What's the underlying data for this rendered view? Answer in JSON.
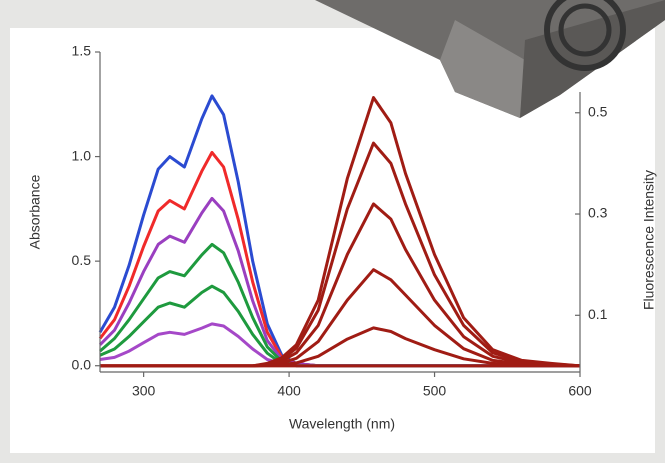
{
  "chart_data": {
    "type": "line",
    "xlabel": "Wavelength (nm)",
    "ylabel": "Absorbance",
    "y2label": "Fluorescence Intensity",
    "x": [
      270,
      280,
      290,
      300,
      310,
      318,
      328,
      340,
      347,
      355,
      365,
      375,
      385,
      395,
      405,
      420,
      440,
      458,
      470,
      480,
      500,
      520,
      540,
      560,
      580,
      600
    ],
    "xlim": [
      270,
      600
    ],
    "xticks": [
      300,
      400,
      500,
      600
    ],
    "ylim": [
      -0.03,
      1.5
    ],
    "yticks": [
      {
        "value": 0,
        "label": "0.0"
      },
      0.5,
      {
        "value": 1,
        "label": "1.0"
      },
      1.5
    ],
    "y2lim": [
      -0.012,
      0.62
    ],
    "y2ticks": [
      0.1,
      0.3,
      0.5
    ],
    "series": [
      {
        "color": "#2b4bd1",
        "values": [
          0.16,
          0.28,
          0.48,
          0.72,
          0.94,
          1.0,
          0.95,
          1.18,
          1.29,
          1.2,
          0.88,
          0.5,
          0.2,
          0.05,
          0.01,
          0,
          0,
          0,
          0,
          0,
          0,
          0,
          0,
          0,
          0,
          0
        ]
      },
      {
        "color": "#f02a2a",
        "values": [
          0.13,
          0.22,
          0.38,
          0.57,
          0.74,
          0.79,
          0.75,
          0.93,
          1.02,
          0.95,
          0.7,
          0.4,
          0.16,
          0.04,
          0.01,
          0,
          0,
          0,
          0,
          0,
          0,
          0,
          0,
          0,
          0,
          0
        ]
      },
      {
        "color": "#9a3fc0",
        "values": [
          0.1,
          0.17,
          0.3,
          0.45,
          0.58,
          0.62,
          0.59,
          0.73,
          0.8,
          0.74,
          0.55,
          0.31,
          0.12,
          0.03,
          0.01,
          0,
          0,
          0,
          0,
          0,
          0,
          0,
          0,
          0,
          0,
          0
        ]
      },
      {
        "color": "#1e9a3e",
        "values": [
          0.07,
          0.13,
          0.22,
          0.32,
          0.42,
          0.45,
          0.43,
          0.53,
          0.58,
          0.54,
          0.4,
          0.23,
          0.09,
          0.02,
          0,
          0,
          0,
          0,
          0,
          0,
          0,
          0,
          0,
          0,
          0,
          0
        ]
      },
      {
        "color": "#1e9a3e",
        "values": [
          0.05,
          0.08,
          0.14,
          0.21,
          0.28,
          0.3,
          0.28,
          0.35,
          0.38,
          0.35,
          0.26,
          0.15,
          0.06,
          0.01,
          0,
          0,
          0,
          0,
          0,
          0,
          0,
          0,
          0,
          0,
          0,
          0
        ]
      },
      {
        "color": "#a548c8",
        "values": [
          0.03,
          0.04,
          0.07,
          0.11,
          0.15,
          0.16,
          0.15,
          0.18,
          0.2,
          0.19,
          0.14,
          0.08,
          0.03,
          0.01,
          0,
          0,
          0,
          0,
          0,
          0,
          0,
          0,
          0,
          0,
          0,
          0
        ]
      },
      {
        "color": "#a01c14",
        "axis": "y2",
        "values": [
          0,
          0,
          0,
          0,
          0,
          0,
          0,
          0,
          0,
          0,
          0,
          0,
          0.005,
          0.016,
          0.042,
          0.13,
          0.37,
          0.53,
          0.48,
          0.38,
          0.22,
          0.095,
          0.032,
          0.011,
          0.005,
          0
        ]
      },
      {
        "color": "#a01c14",
        "axis": "y2",
        "values": [
          0,
          0,
          0,
          0,
          0,
          0,
          0,
          0,
          0,
          0,
          0,
          0,
          0.004,
          0.013,
          0.035,
          0.11,
          0.31,
          0.44,
          0.4,
          0.32,
          0.18,
          0.08,
          0.026,
          0.009,
          0.004,
          0
        ]
      },
      {
        "color": "#a01c14",
        "axis": "y2",
        "values": [
          0,
          0,
          0,
          0,
          0,
          0,
          0,
          0,
          0,
          0,
          0,
          0,
          0.003,
          0.01,
          0.026,
          0.08,
          0.22,
          0.32,
          0.29,
          0.23,
          0.13,
          0.058,
          0.019,
          0.006,
          0.003,
          0
        ]
      },
      {
        "color": "#a01c14",
        "axis": "y2",
        "values": [
          0,
          0,
          0,
          0,
          0,
          0,
          0,
          0,
          0,
          0,
          0,
          0,
          0.002,
          0.006,
          0.015,
          0.048,
          0.13,
          0.19,
          0.17,
          0.14,
          0.08,
          0.034,
          0.011,
          0.004,
          0.002,
          0
        ]
      },
      {
        "color": "#a01c14",
        "axis": "y2",
        "values": [
          0,
          0,
          0,
          0,
          0,
          0,
          0,
          0,
          0,
          0,
          0,
          0,
          0.001,
          0.002,
          0.006,
          0.019,
          0.053,
          0.075,
          0.068,
          0.054,
          0.032,
          0.014,
          0.005,
          0.002,
          0.001,
          0
        ]
      },
      {
        "color": "#a01c14",
        "axis": "y2",
        "values": [
          0,
          0,
          0,
          0,
          0,
          0,
          0,
          0,
          0,
          0,
          0,
          0,
          0,
          0,
          0,
          0,
          0,
          0,
          0,
          0,
          0,
          0,
          0,
          0,
          0,
          0
        ]
      }
    ]
  }
}
